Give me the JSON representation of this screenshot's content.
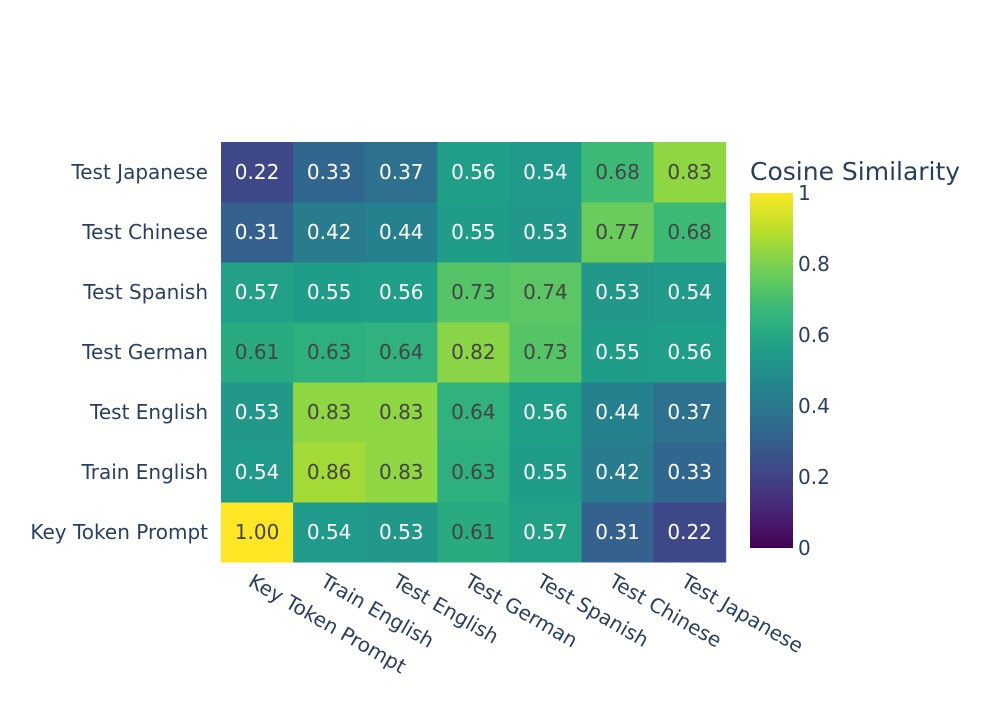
{
  "chart_data": {
    "type": "heatmap",
    "title": "",
    "x_categories": [
      "Key Token Prompt",
      "Train English",
      "Test English",
      "Test German",
      "Test Spanish",
      "Test Chinese",
      "Test Japanese"
    ],
    "y_categories": [
      "Key Token Prompt",
      "Train English",
      "Test English",
      "Test German",
      "Test Spanish",
      "Test Chinese",
      "Test Japanese"
    ],
    "z": [
      [
        1.0,
        0.54,
        0.53,
        0.61,
        0.57,
        0.31,
        0.22
      ],
      [
        0.54,
        0.86,
        0.83,
        0.63,
        0.55,
        0.42,
        0.33
      ],
      [
        0.53,
        0.83,
        0.83,
        0.64,
        0.56,
        0.44,
        0.37
      ],
      [
        0.61,
        0.63,
        0.64,
        0.82,
        0.73,
        0.55,
        0.56
      ],
      [
        0.57,
        0.55,
        0.56,
        0.73,
        0.74,
        0.53,
        0.54
      ],
      [
        0.31,
        0.42,
        0.44,
        0.55,
        0.53,
        0.77,
        0.68
      ],
      [
        0.22,
        0.33,
        0.37,
        0.56,
        0.54,
        0.68,
        0.83
      ]
    ],
    "value_format": "0.00",
    "colorscale": "Viridis",
    "colorbar": {
      "title": "Cosine Similarity",
      "range": [
        0,
        1
      ],
      "ticks": [
        "0",
        "0.2",
        "0.4",
        "0.6",
        "0.8",
        "1"
      ],
      "tick_values": [
        0,
        0.2,
        0.4,
        0.6,
        0.8,
        1
      ]
    },
    "x_tick_angle_deg": 30
  },
  "colors": {
    "axis_text": "#2a3f5f",
    "label_light": "#ffffff",
    "label_dark": "#444444",
    "viridis_stops": [
      "#440154",
      "#482878",
      "#3e4989",
      "#31688e",
      "#26828e",
      "#1f9e89",
      "#35b779",
      "#6ece58",
      "#b5de2b",
      "#fde725"
    ]
  }
}
